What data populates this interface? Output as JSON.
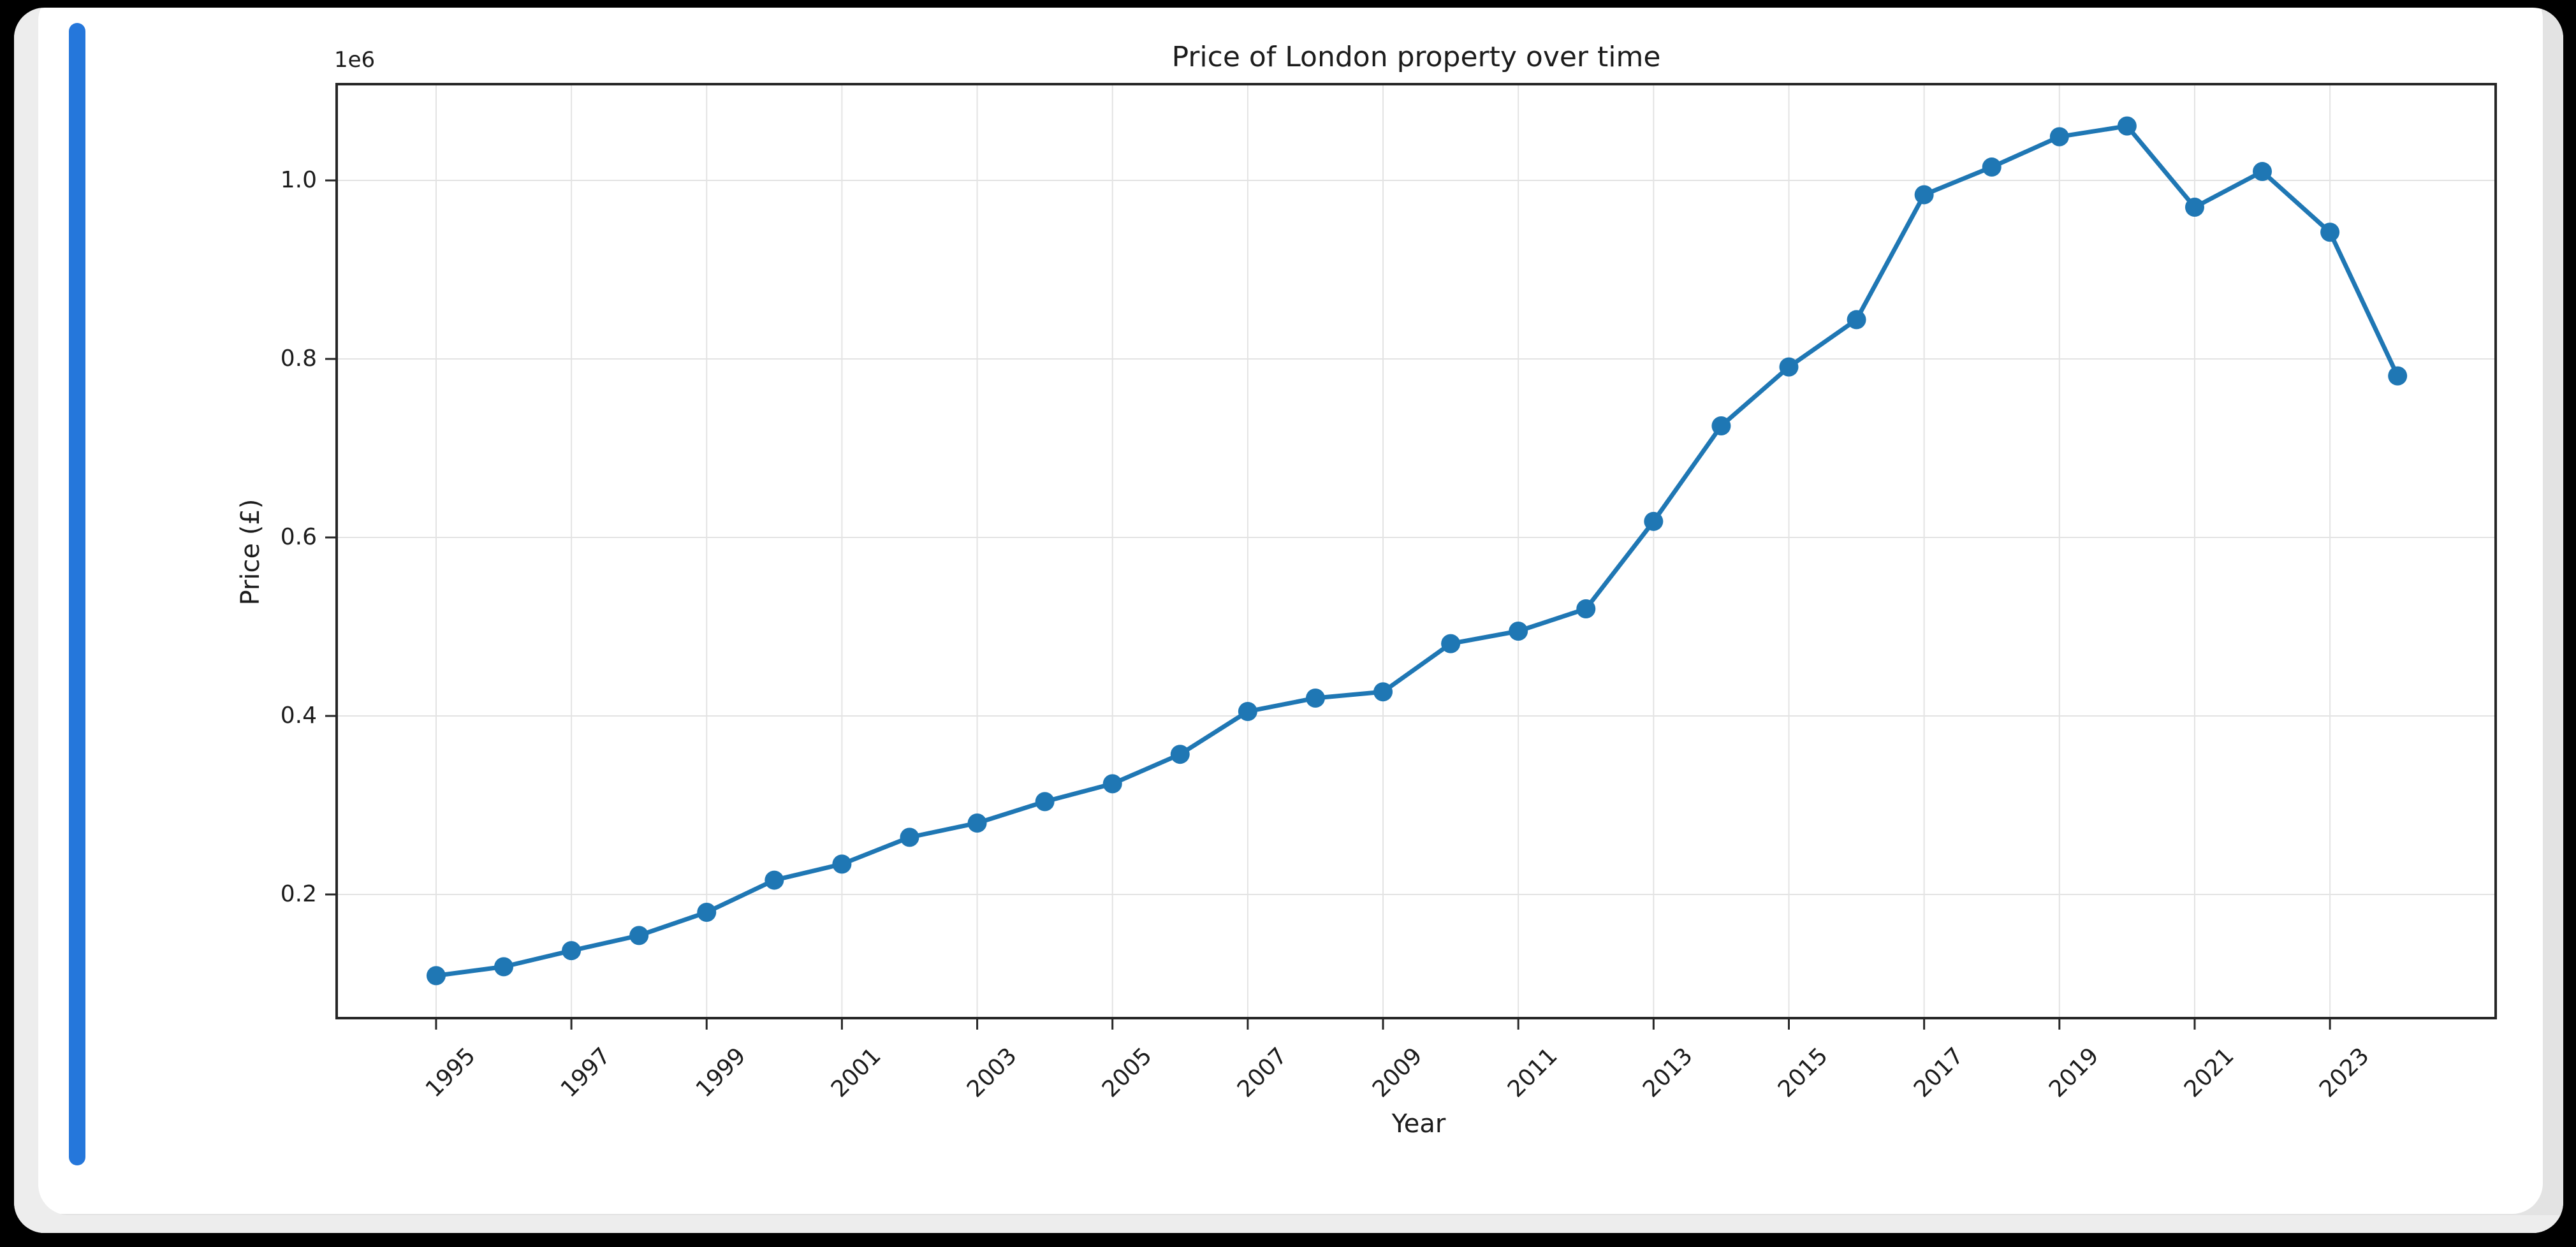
{
  "window": {
    "background_color": "#000000",
    "card_color": "#ffffff",
    "card_shadow_color": "#e8e8e8",
    "scrollbar_color": "#2577db"
  },
  "chart": {
    "title": "Price of London property over time",
    "xlabel": "Year",
    "ylabel": "Price (£)",
    "offset_text": "1e6"
  },
  "chart_data": {
    "type": "line",
    "title": "Price of London property over time",
    "xlabel": "Year",
    "ylabel": "Price (£)",
    "y_offset_text": "1e6",
    "legend": null,
    "grid": true,
    "x": [
      1995,
      1996,
      1997,
      1998,
      1999,
      2000,
      2001,
      2002,
      2003,
      2004,
      2005,
      2006,
      2007,
      2008,
      2009,
      2010,
      2011,
      2012,
      2013,
      2014,
      2015,
      2016,
      2017,
      2018,
      2019,
      2020,
      2021,
      2022,
      2023,
      2024
    ],
    "y": [
      109000,
      119000,
      137000,
      154000,
      180000,
      216000,
      234000,
      264000,
      280000,
      304000,
      324000,
      357000,
      405000,
      420000,
      427000,
      481000,
      495000,
      520000,
      618000,
      725000,
      791000,
      844000,
      984000,
      1015000,
      1049000,
      1061000,
      970000,
      1010000,
      942000,
      781000
    ],
    "x_ticks": [
      1995,
      1997,
      1999,
      2001,
      2003,
      2005,
      2007,
      2009,
      2011,
      2013,
      2015,
      2017,
      2019,
      2021,
      2023
    ],
    "x_tick_labels": [
      "1995",
      "1997",
      "1999",
      "2001",
      "2003",
      "2005",
      "2007",
      "2009",
      "2011",
      "2013",
      "2015",
      "2017",
      "2019",
      "2021",
      "2023"
    ],
    "x_tick_rotation_deg": 45,
    "y_ticks": [
      200000,
      400000,
      600000,
      800000,
      1000000
    ],
    "y_tick_labels": [
      "0.2",
      "0.4",
      "0.6",
      "0.8",
      "1.0"
    ],
    "xlim": [
      1993.53,
      2025.45
    ],
    "ylim": [
      61400,
      1107900
    ],
    "line_color": "#1f77b4",
    "marker": "circle",
    "grid_color": "#e3e3e3",
    "spine_color": "#262626",
    "text_color": "#1c1c1c"
  }
}
